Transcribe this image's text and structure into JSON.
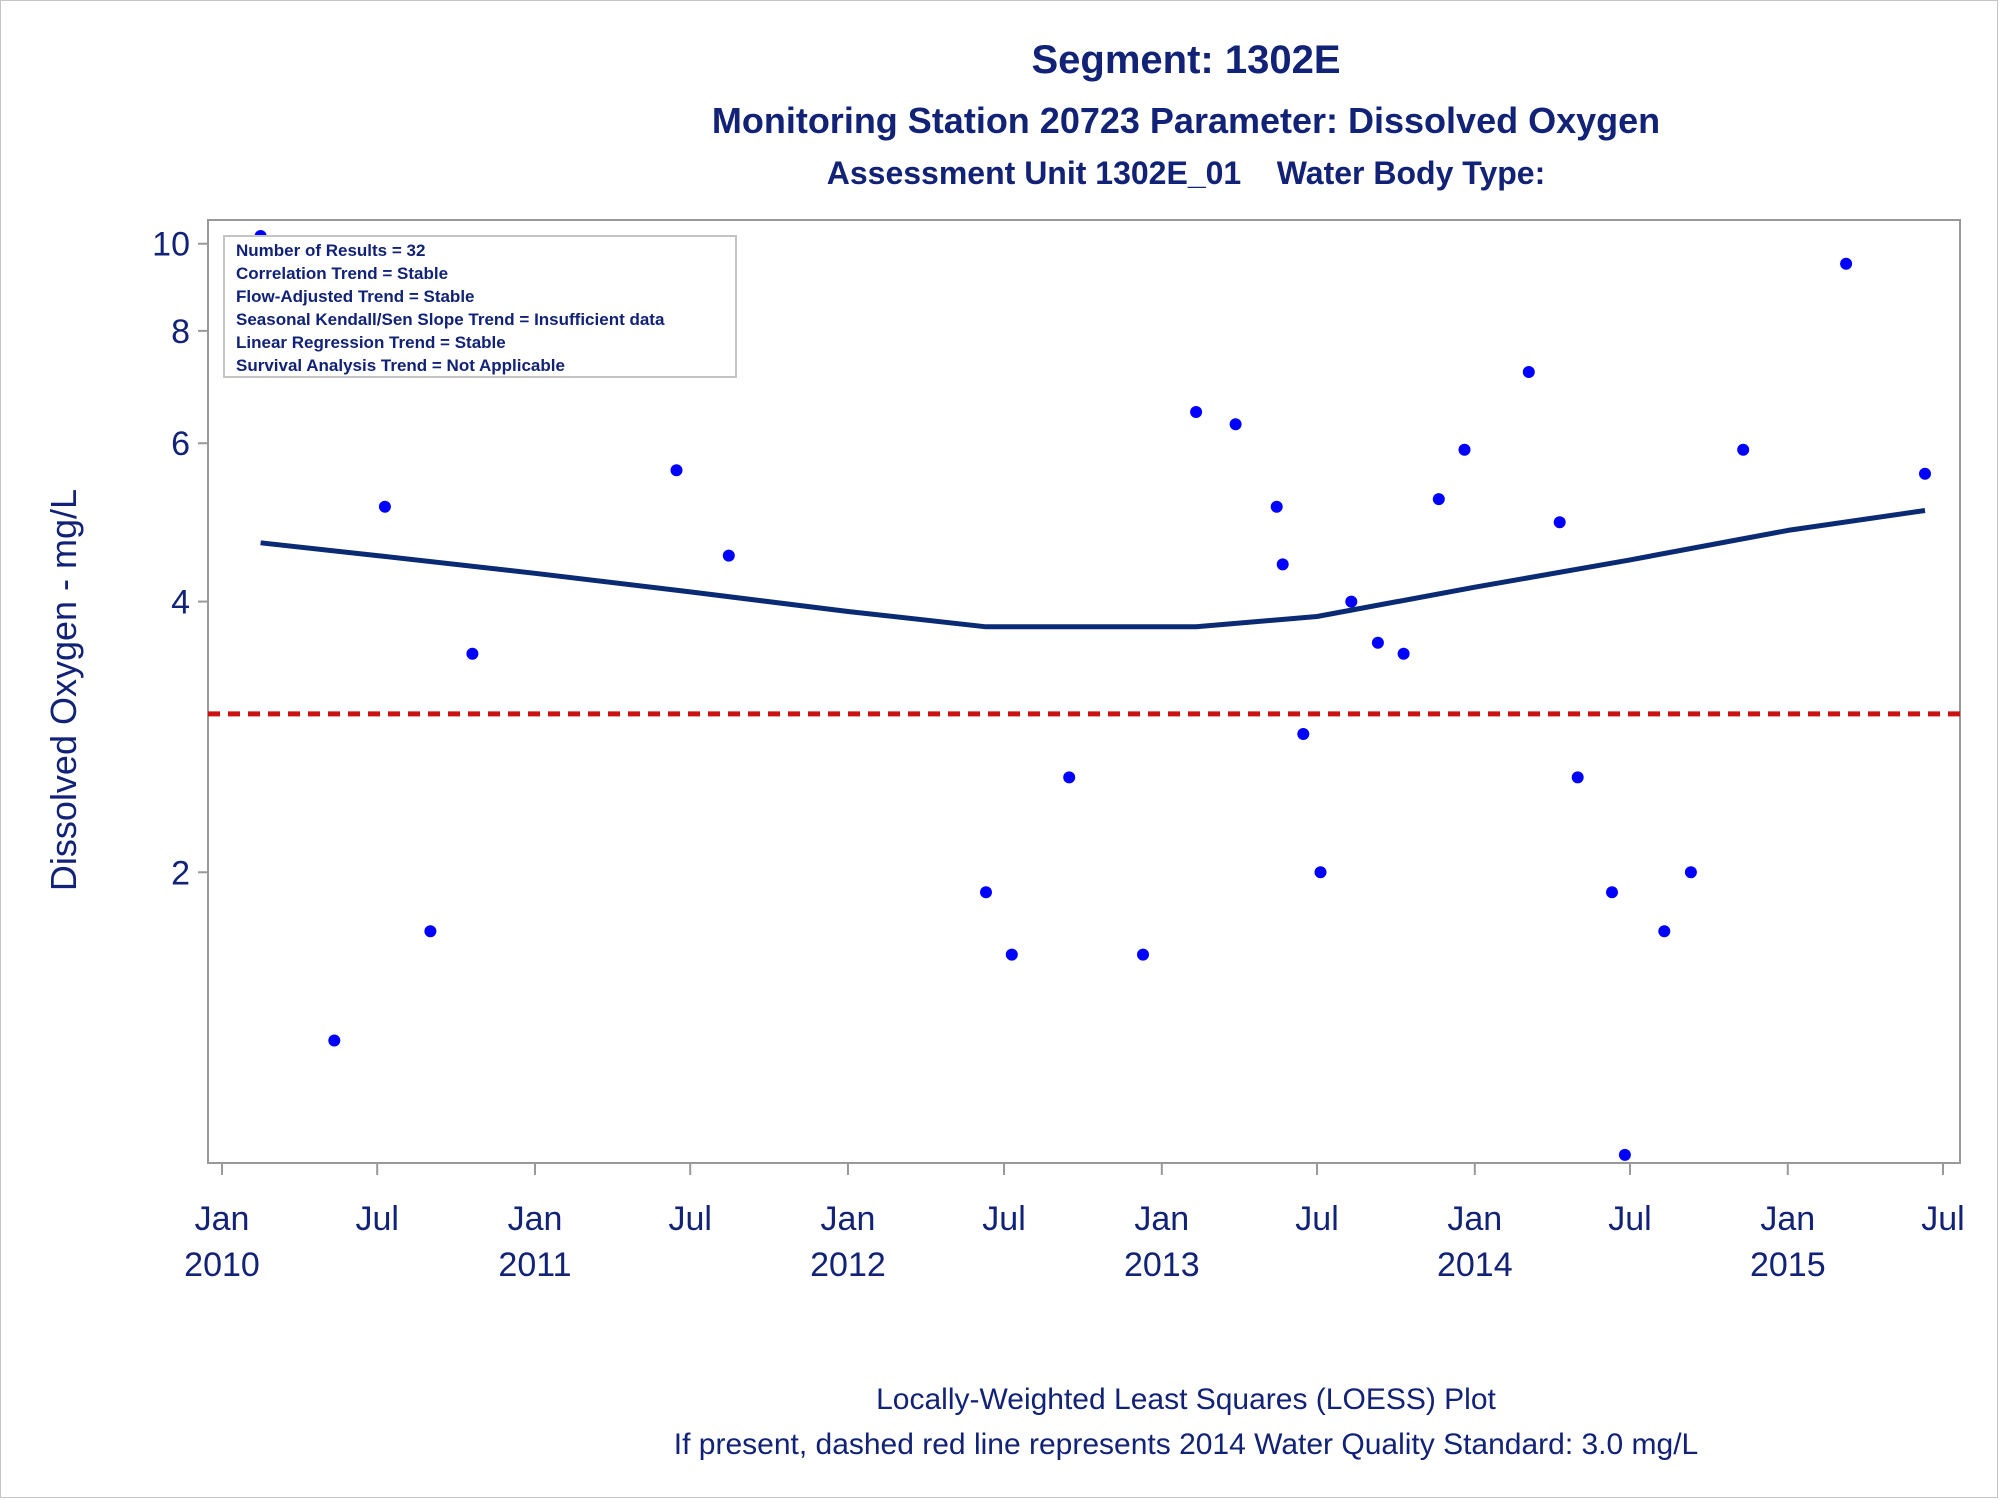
{
  "titles": {
    "line1": "Segment: 1302E",
    "line2": "Monitoring Station 20723 Parameter: Dissolved Oxygen",
    "line3": "Assessment Unit 1302E_01    Water Body Type:"
  },
  "footnotes": {
    "line1": "Locally-Weighted Least Squares (LOESS) Plot",
    "line2": "If present, dashed red line represents 2014 Water Quality Standard: 3.0 mg/L"
  },
  "legend_lines": [
    "Number of Results = 32",
    "Correlation Trend = Stable",
    "Flow-Adjusted Trend = Stable",
    "Seasonal Kendall/Sen Slope Trend = Insufficient data",
    "Linear Regression Trend = Stable",
    "Survival Analysis Trend = Not Applicable"
  ],
  "colors": {
    "text": "#112277",
    "points": "#0000ff",
    "loess": "#0a2a73",
    "standard": "#cc1111",
    "axis": "#999999"
  },
  "chart_data": {
    "type": "scatter",
    "ylabel": "Dissolved Oxygen - mg/L",
    "yscale": "log",
    "ylim": [
      0.95,
      10.2
    ],
    "xlim": [
      "2010-01-01",
      "2015-07-01"
    ],
    "y_ticks": [
      {
        "value": 2,
        "label": "2"
      },
      {
        "value": 4,
        "label": "4"
      },
      {
        "value": 6,
        "label": "6"
      },
      {
        "value": 8,
        "label": "8"
      },
      {
        "value": 10,
        "label": "10"
      }
    ],
    "x_ticks": [
      {
        "date": "2010-01-01",
        "label1": "Jan",
        "label2": "2010"
      },
      {
        "date": "2010-07-01",
        "label1": "Jul",
        "label2": ""
      },
      {
        "date": "2011-01-01",
        "label1": "Jan",
        "label2": "2011"
      },
      {
        "date": "2011-07-01",
        "label1": "Jul",
        "label2": ""
      },
      {
        "date": "2012-01-01",
        "label1": "Jan",
        "label2": "2012"
      },
      {
        "date": "2012-07-01",
        "label1": "Jul",
        "label2": ""
      },
      {
        "date": "2013-01-01",
        "label1": "Jan",
        "label2": "2013"
      },
      {
        "date": "2013-07-01",
        "label1": "Jul",
        "label2": ""
      },
      {
        "date": "2014-01-01",
        "label1": "Jan",
        "label2": "2014"
      },
      {
        "date": "2014-07-01",
        "label1": "Jul",
        "label2": ""
      },
      {
        "date": "2015-01-01",
        "label1": "Jan",
        "label2": "2015"
      },
      {
        "date": "2015-07-01",
        "label1": "Jul",
        "label2": ""
      }
    ],
    "standard_line": 3.0,
    "series": [
      {
        "type": "scatter",
        "points": [
          {
            "x": "2010-02-15",
            "y": 10.2
          },
          {
            "x": "2010-05-12",
            "y": 1.3
          },
          {
            "x": "2010-07-10",
            "y": 5.1
          },
          {
            "x": "2010-09-01",
            "y": 1.72
          },
          {
            "x": "2010-10-20",
            "y": 3.5
          },
          {
            "x": "2011-06-15",
            "y": 5.6
          },
          {
            "x": "2011-08-15",
            "y": 4.5
          },
          {
            "x": "2012-06-10",
            "y": 1.9
          },
          {
            "x": "2012-07-10",
            "y": 1.62
          },
          {
            "x": "2012-09-15",
            "y": 2.55
          },
          {
            "x": "2012-12-10",
            "y": 1.62
          },
          {
            "x": "2013-02-10",
            "y": 6.5
          },
          {
            "x": "2013-03-28",
            "y": 6.3
          },
          {
            "x": "2013-05-15",
            "y": 5.1
          },
          {
            "x": "2013-05-22",
            "y": 4.4
          },
          {
            "x": "2013-06-15",
            "y": 2.85
          },
          {
            "x": "2013-07-05",
            "y": 2.0
          },
          {
            "x": "2013-08-10",
            "y": 4.0
          },
          {
            "x": "2013-09-10",
            "y": 3.6
          },
          {
            "x": "2013-10-10",
            "y": 3.5
          },
          {
            "x": "2013-11-20",
            "y": 5.2
          },
          {
            "x": "2013-12-20",
            "y": 5.9
          },
          {
            "x": "2014-03-05",
            "y": 7.2
          },
          {
            "x": "2014-04-10",
            "y": 4.9
          },
          {
            "x": "2014-05-01",
            "y": 2.55
          },
          {
            "x": "2014-06-10",
            "y": 1.9
          },
          {
            "x": "2014-06-25",
            "y": 0.97
          },
          {
            "x": "2014-08-10",
            "y": 1.72
          },
          {
            "x": "2014-09-10",
            "y": 2.0
          },
          {
            "x": "2014-11-10",
            "y": 5.9
          },
          {
            "x": "2015-03-10",
            "y": 9.5
          },
          {
            "x": "2015-06-10",
            "y": 5.55
          }
        ]
      },
      {
        "type": "line",
        "points": [
          {
            "x": "2010-02-15",
            "y": 4.65
          },
          {
            "x": "2010-07-01",
            "y": 4.5
          },
          {
            "x": "2011-01-01",
            "y": 4.3
          },
          {
            "x": "2011-07-01",
            "y": 4.1
          },
          {
            "x": "2012-01-01",
            "y": 3.9
          },
          {
            "x": "2012-06-10",
            "y": 3.75
          },
          {
            "x": "2013-02-10",
            "y": 3.75
          },
          {
            "x": "2013-07-01",
            "y": 3.85
          },
          {
            "x": "2014-01-01",
            "y": 4.15
          },
          {
            "x": "2014-07-01",
            "y": 4.45
          },
          {
            "x": "2015-01-01",
            "y": 4.8
          },
          {
            "x": "2015-06-10",
            "y": 5.05
          }
        ]
      }
    ]
  }
}
